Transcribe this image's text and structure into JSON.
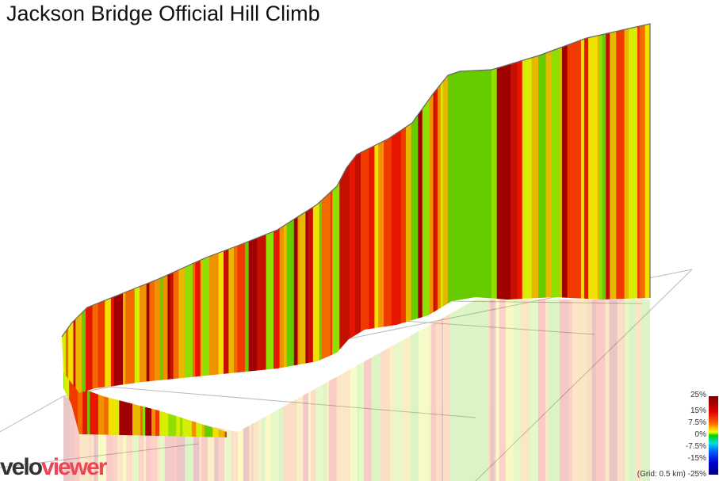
{
  "title": "Jackson Bridge Official Hill Climb",
  "logo": {
    "part1": "velo",
    "part2": "viewer"
  },
  "chart_data": {
    "type": "area",
    "title": "Jackson Bridge Official Hill Climb",
    "style": "3d elevation profile coloured by gradient",
    "grid_note": "(Grid: 0.5 km)",
    "legend": {
      "placement": "bottom-right",
      "ticks": [
        "25%",
        "15%",
        "7.5%",
        "0%",
        "-7.5%",
        "-15%",
        "-25%"
      ],
      "colors": {
        "25%": "#7a0000",
        "15%": "#e00000",
        "7.5%": "#ffb000",
        "0%": "#00d000",
        "-7.5%": "#00e0e0",
        "-15%": "#0060ff",
        "-25%": "#000080"
      }
    },
    "palette": [
      "#e81500",
      "#f03a00",
      "#f26a00",
      "#ee9200",
      "#e8b800",
      "#f2e000",
      "#d7ee00",
      "#8fe000",
      "#66cc00",
      "#c41000",
      "#a00000"
    ]
  }
}
